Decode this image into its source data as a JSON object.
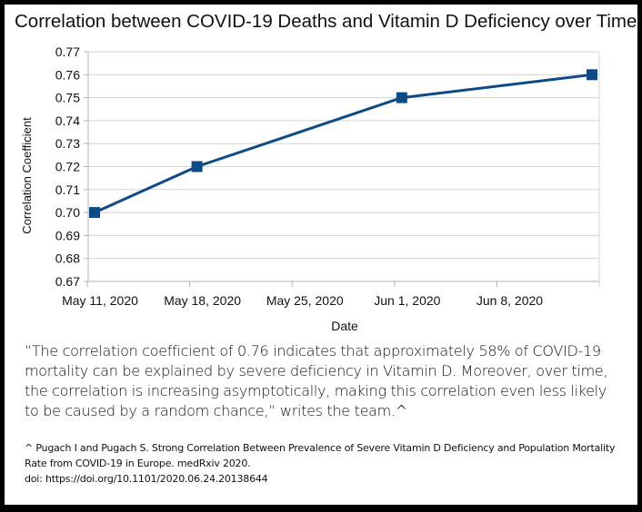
{
  "chart_data": {
    "type": "line",
    "title": "Correlation between COVID-19 Deaths and Vitamin D Deficiency over Time",
    "title_marker": "^",
    "xlabel": "Date",
    "ylabel": "Correlation Coefficient",
    "x": [
      "2020-05-11",
      "2020-05-18",
      "2020-06-01",
      "2020-06-14"
    ],
    "values": [
      0.7,
      0.72,
      0.75,
      0.76
    ],
    "ylim": [
      0.67,
      0.77
    ],
    "xlim": [
      "2020-05-11",
      "2020-06-14"
    ],
    "yticks": [
      "0.67",
      "0.68",
      "0.69",
      "0.70",
      "0.71",
      "0.72",
      "0.73",
      "0.74",
      "0.75",
      "0.76",
      "0.77"
    ],
    "xticks": [
      {
        "date": "2020-05-11",
        "label": "May 11, 2020"
      },
      {
        "date": "2020-05-18",
        "label": "May 18, 2020"
      },
      {
        "date": "2020-05-25",
        "label": "May 25, 2020"
      },
      {
        "date": "2020-06-01",
        "label": "Jun 1, 2020"
      },
      {
        "date": "2020-06-08",
        "label": "Jun 8, 2020"
      }
    ],
    "grid": true,
    "line_color": "#0e4a86",
    "marker": "square"
  },
  "quote": "”The correlation coefficient of 0.76 indicates that approximately 58% of COVID-19 mortality can be explained by severe deficiency in Vitamin D. Moreover, over time, the correlation is increasing asymptotically, making this correlation even less likely to be caused by a random chance,” writes the team.^",
  "footnote": {
    "citation": "^ Pugach I and Pugach S. Strong Correlation Between Prevalence of Severe Vitamin D Deficiency and Population Mortality Rate from COVID-19 in Europe. medRxiv 2020.",
    "doi": "doi: https://doi.org/10.1101/2020.06.24.20138644"
  }
}
